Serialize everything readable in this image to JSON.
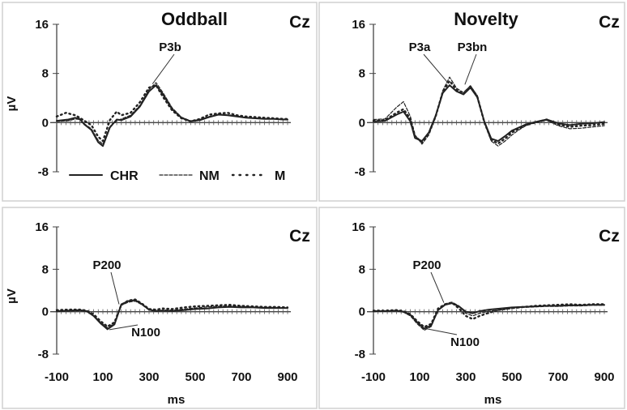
{
  "chart_data": [
    {
      "type": "line",
      "title": "Oddball",
      "electrode": "Cz",
      "ylabel": "µV",
      "xlabel": "",
      "xlim": [
        -100,
        900
      ],
      "ylim": [
        -8,
        16
      ],
      "y_ticks": [
        "16",
        "8",
        "0",
        "-8"
      ],
      "x_ticks": [],
      "grid": false,
      "legend": {
        "placement": "bottom-left",
        "entries": [
          "CHR",
          "NM",
          "M"
        ]
      },
      "annotations": [
        {
          "text": "P3b",
          "x": 315,
          "y": 6.3
        }
      ],
      "series": [
        {
          "name": "CHR",
          "style": "solid",
          "x": [
            -100,
            -50,
            -20,
            0,
            20,
            50,
            80,
            100,
            130,
            160,
            180,
            220,
            260,
            300,
            330,
            360,
            400,
            440,
            480,
            520,
            560,
            600,
            640,
            680,
            720,
            760,
            800,
            840,
            880,
            900
          ],
          "y": [
            0.3,
            0.5,
            0.8,
            0.6,
            -0.3,
            -1.2,
            -3.2,
            -3.8,
            -0.8,
            0.5,
            0.4,
            1.0,
            2.6,
            5.1,
            6.1,
            4.6,
            2.2,
            0.8,
            0.2,
            0.4,
            0.9,
            1.3,
            1.2,
            1.0,
            0.8,
            0.7,
            0.6,
            0.6,
            0.5,
            0.5
          ]
        },
        {
          "name": "NM",
          "style": "dashed",
          "x": [
            -100,
            -50,
            -20,
            0,
            20,
            50,
            80,
            100,
            130,
            160,
            180,
            220,
            260,
            300,
            330,
            360,
            400,
            440,
            480,
            520,
            560,
            600,
            640,
            680,
            720,
            760,
            800,
            840,
            880,
            900
          ],
          "y": [
            0.2,
            0.3,
            0.6,
            0.5,
            -0.2,
            -1.0,
            -2.9,
            -3.5,
            -0.6,
            0.3,
            0.6,
            1.2,
            2.8,
            5.4,
            6.5,
            4.9,
            2.4,
            0.9,
            0.3,
            0.5,
            1.0,
            1.4,
            1.3,
            1.1,
            0.8,
            0.7,
            0.7,
            0.6,
            0.5,
            0.5
          ]
        },
        {
          "name": "M",
          "style": "dotted",
          "x": [
            -100,
            -60,
            -20,
            0,
            20,
            50,
            80,
            100,
            130,
            160,
            180,
            220,
            260,
            300,
            330,
            360,
            400,
            440,
            480,
            520,
            560,
            600,
            640,
            680,
            720,
            760,
            800,
            840,
            880,
            900
          ],
          "y": [
            1.0,
            1.6,
            1.2,
            0.8,
            0.3,
            -0.4,
            -2.3,
            -3.0,
            0.4,
            1.8,
            1.2,
            1.6,
            3.3,
            5.7,
            6.1,
            4.2,
            2.0,
            0.7,
            0.2,
            0.6,
            1.3,
            1.5,
            1.6,
            1.2,
            1.0,
            0.9,
            0.8,
            0.7,
            0.6,
            0.6
          ]
        }
      ]
    },
    {
      "type": "line",
      "title": "Novelty",
      "electrode": "Cz",
      "ylabel": "",
      "xlabel": "",
      "xlim": [
        -100,
        900
      ],
      "ylim": [
        -8,
        16
      ],
      "y_ticks": [
        "16",
        "8",
        "0",
        "-8"
      ],
      "x_ticks": [],
      "grid": false,
      "annotations": [
        {
          "text": "P3a",
          "x": 220,
          "y": 6.5
        },
        {
          "text": "P3bn",
          "x": 300,
          "y": 6.0
        }
      ],
      "series": [
        {
          "name": "CHR",
          "style": "solid",
          "x": [
            -100,
            -50,
            0,
            30,
            60,
            80,
            110,
            140,
            170,
            200,
            230,
            260,
            290,
            320,
            350,
            380,
            410,
            440,
            470,
            500,
            530,
            560,
            600,
            650,
            700,
            750,
            800,
            850,
            900
          ],
          "y": [
            0.2,
            0.3,
            1.3,
            1.8,
            0.2,
            -2.5,
            -3.0,
            -1.6,
            1.2,
            4.8,
            6.1,
            5.1,
            4.6,
            5.7,
            4.1,
            0.2,
            -2.6,
            -3.0,
            -2.2,
            -1.3,
            -0.8,
            -0.3,
            0.1,
            0.5,
            -0.1,
            -0.4,
            -0.2,
            -0.1,
            0.1
          ]
        },
        {
          "name": "NM",
          "style": "dashed",
          "x": [
            -100,
            -50,
            0,
            30,
            60,
            80,
            110,
            140,
            170,
            200,
            230,
            260,
            290,
            320,
            350,
            380,
            410,
            440,
            470,
            500,
            530,
            560,
            600,
            650,
            700,
            750,
            800,
            850,
            900
          ],
          "y": [
            0.5,
            0.6,
            2.5,
            3.4,
            1.0,
            -2.0,
            -3.5,
            -2.0,
            1.0,
            5.2,
            7.4,
            5.6,
            4.9,
            6.0,
            4.4,
            0.0,
            -3.0,
            -3.8,
            -3.0,
            -2.0,
            -1.2,
            -0.5,
            0.0,
            0.4,
            -0.5,
            -1.0,
            -0.9,
            -0.7,
            -0.5
          ]
        },
        {
          "name": "M",
          "style": "dotted",
          "x": [
            -100,
            -50,
            0,
            30,
            60,
            80,
            110,
            140,
            170,
            200,
            230,
            260,
            290,
            320,
            350,
            380,
            410,
            440,
            470,
            500,
            530,
            560,
            600,
            650,
            700,
            750,
            800,
            850,
            900
          ],
          "y": [
            0.3,
            0.4,
            1.6,
            2.2,
            0.6,
            -2.2,
            -3.2,
            -1.8,
            1.1,
            5.0,
            6.8,
            5.3,
            4.7,
            5.9,
            4.2,
            0.1,
            -2.8,
            -3.4,
            -2.6,
            -1.6,
            -1.0,
            -0.4,
            0.0,
            0.5,
            -0.3,
            -0.7,
            -0.5,
            -0.4,
            -0.2
          ]
        }
      ]
    },
    {
      "type": "line",
      "title": "",
      "electrode": "Cz",
      "ylabel": "µV",
      "xlabel": "ms",
      "xlim": [
        -100,
        900
      ],
      "ylim": [
        -8,
        16
      ],
      "y_ticks": [
        "16",
        "8",
        "0",
        "-8"
      ],
      "x_ticks": [
        "-100",
        "100",
        "300",
        "500",
        "700",
        "900"
      ],
      "grid": false,
      "annotations": [
        {
          "text": "P200",
          "x": 175,
          "y": 1.0
        },
        {
          "text": "N100",
          "x": 130,
          "y": -3.5
        }
      ],
      "series": [
        {
          "name": "CHR",
          "style": "solid",
          "x": [
            -100,
            -50,
            0,
            30,
            60,
            90,
            120,
            150,
            180,
            210,
            240,
            270,
            300,
            330,
            360,
            400,
            450,
            500,
            550,
            600,
            650,
            700,
            750,
            800,
            850,
            900
          ],
          "y": [
            0.1,
            0.2,
            0.3,
            0.1,
            -0.8,
            -2.2,
            -3.3,
            -2.4,
            1.4,
            2.0,
            2.2,
            1.4,
            0.4,
            0.1,
            0.2,
            0.1,
            0.3,
            0.5,
            0.6,
            0.8,
            0.9,
            0.8,
            0.8,
            0.7,
            0.7,
            0.7
          ]
        },
        {
          "name": "NM",
          "style": "dashed",
          "x": [
            -100,
            -50,
            0,
            30,
            60,
            90,
            120,
            150,
            180,
            210,
            240,
            270,
            300,
            330,
            360,
            400,
            450,
            500,
            550,
            600,
            650,
            700,
            750,
            800,
            850,
            900
          ],
          "y": [
            0.0,
            0.1,
            0.2,
            0.0,
            -0.7,
            -2.0,
            -3.0,
            -2.2,
            1.2,
            1.8,
            2.0,
            1.3,
            0.3,
            0.2,
            0.3,
            0.3,
            0.5,
            0.7,
            0.9,
            1.0,
            1.1,
            1.0,
            0.9,
            0.8,
            0.8,
            0.7
          ]
        },
        {
          "name": "M",
          "style": "dotted",
          "x": [
            -100,
            -50,
            0,
            30,
            60,
            90,
            120,
            150,
            180,
            210,
            240,
            270,
            300,
            330,
            360,
            400,
            450,
            500,
            550,
            600,
            650,
            700,
            750,
            800,
            850,
            900
          ],
          "y": [
            0.3,
            0.4,
            0.4,
            0.2,
            -0.5,
            -1.8,
            -2.8,
            -2.0,
            1.3,
            2.1,
            2.3,
            1.5,
            0.5,
            0.4,
            0.6,
            0.5,
            0.8,
            1.0,
            1.1,
            1.2,
            1.3,
            1.1,
            1.0,
            0.9,
            0.9,
            0.8
          ]
        }
      ]
    },
    {
      "type": "line",
      "title": "",
      "electrode": "Cz",
      "ylabel": "",
      "xlabel": "ms",
      "xlim": [
        -100,
        900
      ],
      "ylim": [
        -8,
        16
      ],
      "y_ticks": [
        "16",
        "8",
        "0",
        "-8"
      ],
      "x_ticks": [
        "-100",
        "100",
        "300",
        "500",
        "700",
        "900"
      ],
      "grid": false,
      "annotations": [
        {
          "text": "P200",
          "x": 200,
          "y": 1.5
        },
        {
          "text": "N100",
          "x": 130,
          "y": -3.2
        }
      ],
      "series": [
        {
          "name": "CHR",
          "style": "solid",
          "x": [
            -100,
            -50,
            0,
            30,
            60,
            90,
            120,
            150,
            180,
            210,
            240,
            270,
            300,
            330,
            360,
            400,
            450,
            500,
            550,
            600,
            650,
            700,
            750,
            800,
            850,
            900
          ],
          "y": [
            0.1,
            0.1,
            0.2,
            0.0,
            -0.6,
            -2.0,
            -3.2,
            -2.6,
            0.3,
            1.3,
            1.6,
            1.0,
            0.0,
            -0.3,
            0.1,
            0.4,
            0.6,
            0.8,
            0.9,
            1.0,
            1.1,
            1.1,
            1.2,
            1.2,
            1.3,
            1.3
          ]
        },
        {
          "name": "NM",
          "style": "dashed",
          "x": [
            -100,
            -50,
            0,
            30,
            60,
            90,
            120,
            150,
            180,
            210,
            240,
            270,
            300,
            330,
            360,
            400,
            450,
            500,
            550,
            600,
            650,
            700,
            750,
            800,
            850,
            900
          ],
          "y": [
            0.0,
            0.1,
            0.1,
            -0.1,
            -0.8,
            -2.3,
            -3.5,
            -2.8,
            0.4,
            1.5,
            1.8,
            1.1,
            -0.3,
            -0.8,
            -0.3,
            0.1,
            0.3,
            0.6,
            0.8,
            0.9,
            1.0,
            1.0,
            1.1,
            1.1,
            1.2,
            1.2
          ]
        },
        {
          "name": "M",
          "style": "dotted",
          "x": [
            -100,
            -50,
            0,
            30,
            60,
            90,
            120,
            150,
            180,
            210,
            240,
            270,
            300,
            330,
            360,
            400,
            450,
            500,
            550,
            600,
            650,
            700,
            750,
            800,
            850,
            900
          ],
          "y": [
            0.2,
            0.2,
            0.3,
            0.1,
            -0.5,
            -1.8,
            -2.9,
            -2.3,
            0.6,
            1.4,
            1.7,
            0.6,
            -0.8,
            -1.4,
            -0.8,
            -0.2,
            0.4,
            0.7,
            0.9,
            1.1,
            1.2,
            1.3,
            1.4,
            1.3,
            1.4,
            1.4
          ]
        }
      ]
    }
  ]
}
